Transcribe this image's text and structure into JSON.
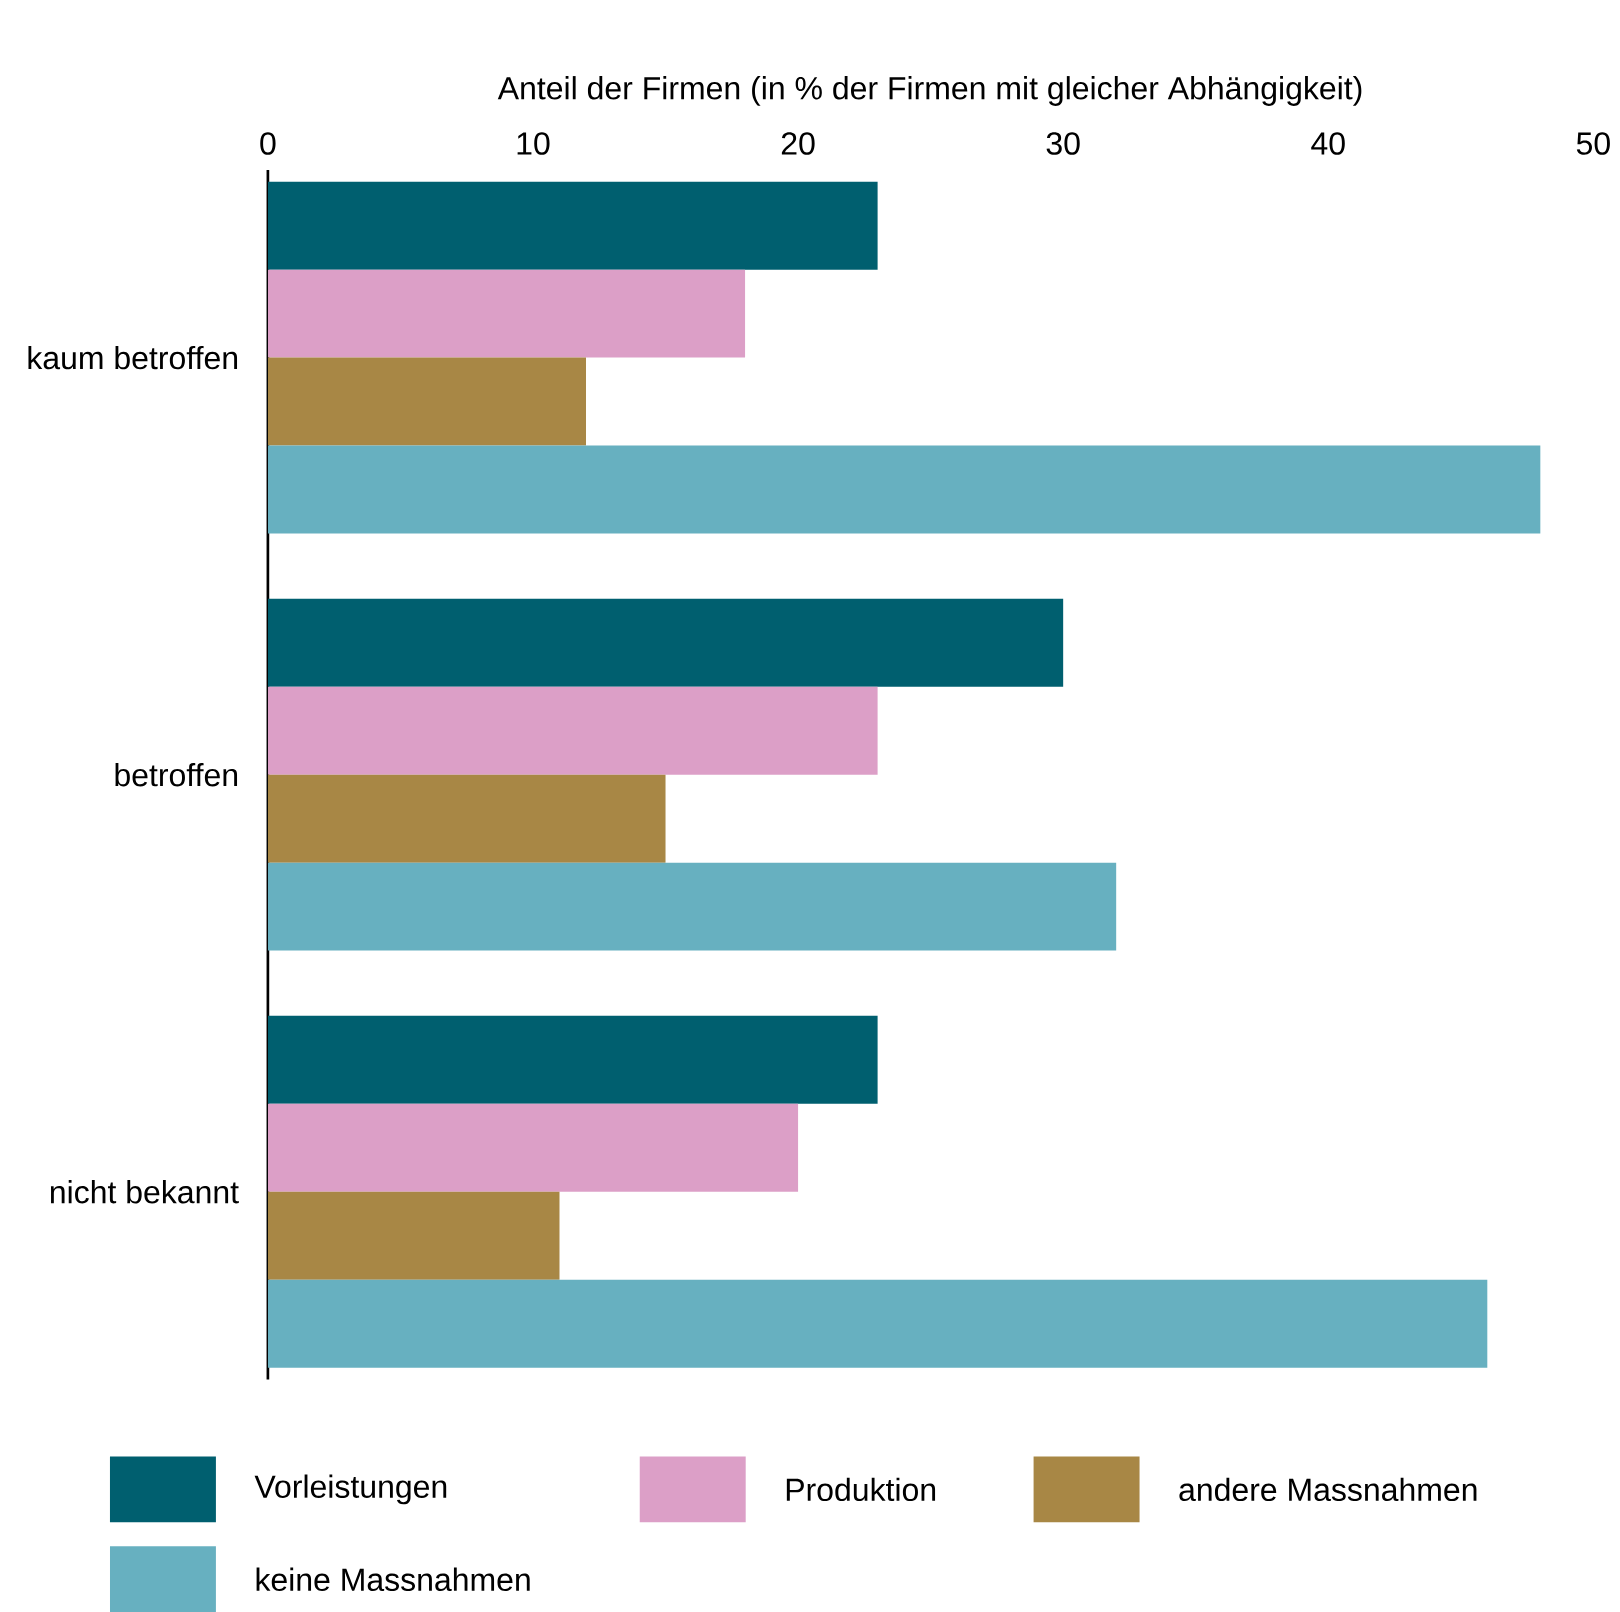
{
  "chart_data": {
    "type": "bar",
    "orientation": "horizontal",
    "xlabel": "Anteil der Firmen (in % der Firmen mit gleicher Abhängigkeit)",
    "categories": [
      "kaum betroffen",
      "betroffen",
      "nicht bekannt"
    ],
    "series": [
      {
        "name": "Vorleistungen",
        "color": "#005f6f",
        "values": [
          23,
          30,
          23
        ]
      },
      {
        "name": "Produktion",
        "color": "#dc9fc7",
        "values": [
          18,
          23,
          20
        ]
      },
      {
        "name": "andere Massnahmen",
        "color": "#a88745",
        "values": [
          12,
          15,
          11
        ]
      },
      {
        "name": "keine Massnahmen",
        "color": "#67b0c0",
        "values": [
          48,
          32,
          46
        ]
      }
    ],
    "xlim": [
      0,
      50
    ],
    "xticks": [
      0,
      10,
      20,
      30,
      40,
      50
    ],
    "legend": "bottom"
  }
}
